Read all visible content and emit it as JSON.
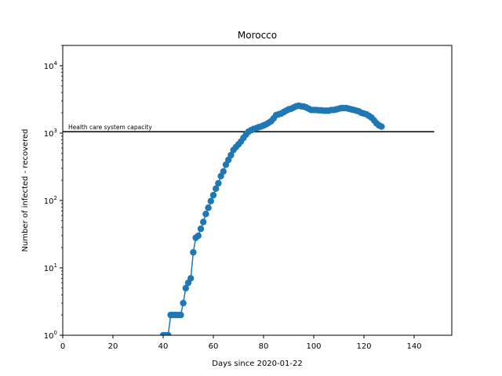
{
  "chart_data": {
    "type": "line",
    "title": "Morocco",
    "xlabel": "Days since 2020-01-22",
    "ylabel": "Number of infected - recovered",
    "xlim": [
      0,
      155
    ],
    "ylim": [
      1,
      20000
    ],
    "yscale": "log",
    "grid": false,
    "series_color": "#1f77b4",
    "x_ticks": [
      0,
      20,
      40,
      60,
      80,
      100,
      120,
      140
    ],
    "y_ticks": [
      {
        "value": 1,
        "base": "10",
        "exp": "0"
      },
      {
        "value": 10,
        "base": "10",
        "exp": "1"
      },
      {
        "value": 100,
        "base": "10",
        "exp": "2"
      },
      {
        "value": 1000,
        "base": "10",
        "exp": "3"
      },
      {
        "value": 10000,
        "base": "10",
        "exp": "4"
      }
    ],
    "capacity_line": {
      "y": 1050,
      "x": [
        0,
        148
      ],
      "label": "Health care system capacity",
      "color": "#000000"
    },
    "series": [
      {
        "x": [
          40,
          41,
          42,
          43,
          44,
          45,
          46,
          47,
          48,
          49,
          50,
          51,
          52,
          53,
          54,
          55,
          56,
          57,
          58,
          59,
          60,
          61,
          62,
          63,
          64,
          65,
          66,
          67,
          68,
          69,
          70,
          71,
          72,
          73,
          74,
          75,
          76,
          77,
          78,
          79,
          80,
          81,
          82,
          83,
          84,
          85,
          86,
          87,
          88,
          89,
          90,
          91,
          92,
          93,
          94,
          95,
          96,
          97,
          98,
          99,
          100,
          101,
          102,
          103,
          104,
          105,
          106,
          107,
          108,
          109,
          110,
          111,
          112,
          113,
          114,
          115,
          116,
          117,
          118,
          119,
          120,
          121,
          122,
          123,
          124,
          125,
          126,
          127
        ],
        "y": [
          1,
          1,
          1,
          2,
          2,
          2,
          2,
          2,
          3,
          5,
          6,
          7,
          17,
          28,
          30,
          38,
          48,
          63,
          78,
          98,
          120,
          150,
          180,
          230,
          270,
          340,
          400,
          470,
          560,
          620,
          680,
          750,
          850,
          950,
          1050,
          1100,
          1150,
          1180,
          1220,
          1250,
          1300,
          1350,
          1420,
          1500,
          1650,
          1850,
          1900,
          1950,
          2050,
          2150,
          2250,
          2300,
          2400,
          2500,
          2550,
          2500,
          2480,
          2400,
          2300,
          2200,
          2200,
          2200,
          2180,
          2180,
          2150,
          2150,
          2150,
          2200,
          2200,
          2250,
          2300,
          2350,
          2350,
          2350,
          2300,
          2250,
          2200,
          2150,
          2100,
          2000,
          1950,
          1900,
          1800,
          1700,
          1550,
          1400,
          1300,
          1250
        ]
      }
    ]
  }
}
